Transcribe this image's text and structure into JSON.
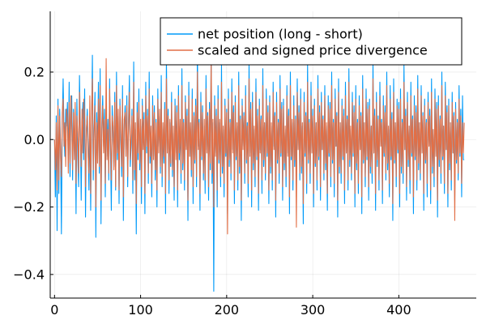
{
  "chart_data": {
    "type": "line",
    "title": "",
    "xlabel": "",
    "ylabel": "",
    "xlim": [
      -5,
      490
    ],
    "ylim": [
      -0.47,
      0.38
    ],
    "xticks": [
      0,
      100,
      200,
      300,
      400
    ],
    "xtick_labels": [
      "0",
      "100",
      "200",
      "300",
      "400"
    ],
    "yticks": [
      -0.4,
      -0.2,
      0.0,
      0.2
    ],
    "ytick_labels": [
      "−0.4",
      "−0.2",
      "0.0",
      "0.2"
    ],
    "grid": true,
    "legend_position": "top-right",
    "series": [
      {
        "name": "net position (long - short)",
        "color": "#009AF9",
        "values": [
          0.0,
          -0.17,
          0.07,
          -0.27,
          0.12,
          -0.16,
          0.09,
          -0.02,
          -0.28,
          0.05,
          0.18,
          0.02,
          -0.05,
          0.09,
          0.04,
          0.11,
          -0.08,
          0.17,
          -0.11,
          0.08,
          0.13,
          -0.12,
          0.09,
          -0.03,
          0.06,
          -0.22,
          0.12,
          -0.05,
          -0.14,
          0.19,
          0.03,
          -0.18,
          0.05,
          0.11,
          -0.06,
          0.15,
          -0.23,
          0.02,
          0.09,
          -0.01,
          -0.15,
          0.07,
          -0.21,
          0.04,
          0.25,
          -0.12,
          0.03,
          0.14,
          -0.29,
          0.08,
          -0.04,
          0.17,
          -0.1,
          0.21,
          -0.25,
          0.05,
          0.13,
          -0.02,
          0.09,
          -0.17,
          0.11,
          -0.05,
          0.06,
          -0.12,
          0.18,
          -0.03,
          -0.21,
          0.1,
          0.02,
          -0.08,
          0.14,
          -0.15,
          0.2,
          -0.06,
          0.07,
          -0.19,
          0.12,
          0.0,
          -0.11,
          0.16,
          -0.24,
          0.04,
          0.1,
          -0.03,
          0.13,
          -0.14,
          0.06,
          0.19,
          -0.08,
          -0.02,
          0.09,
          -0.16,
          0.23,
          -0.12,
          0.03,
          -0.28,
          0.11,
          -0.06,
          0.15,
          -0.09,
          0.04,
          -0.19,
          0.12,
          -0.01,
          0.08,
          -0.22,
          0.17,
          -0.04,
          0.09,
          -0.13,
          0.2,
          -0.07,
          0.02,
          -0.17,
          0.13,
          -0.05,
          0.1,
          -0.12,
          0.06,
          -0.2,
          0.15,
          -0.02,
          0.07,
          -0.1,
          0.19,
          -0.14,
          0.03,
          -0.07,
          0.11,
          -0.22,
          0.24,
          -0.03,
          0.09,
          -0.16,
          0.05,
          -0.08,
          0.14,
          -0.11,
          0.02,
          -0.18,
          0.12,
          -0.04,
          0.1,
          -0.2,
          0.16,
          -0.06,
          0.04,
          -0.13,
          0.21,
          -0.09,
          0.06,
          -0.15,
          0.13,
          -0.02,
          0.09,
          -0.24,
          0.17,
          -0.05,
          0.03,
          -0.11,
          0.15,
          -0.19,
          0.08,
          -0.07,
          0.12,
          -0.14,
          0.27,
          -0.02,
          0.06,
          -0.21,
          0.14,
          -0.06,
          0.1,
          -0.12,
          0.04,
          -0.16,
          0.19,
          -0.03,
          0.08,
          -0.18,
          0.11,
          -0.09,
          0.28,
          -0.13,
          0.05,
          -0.45,
          0.13,
          -0.04,
          0.09,
          -0.2,
          0.16,
          -0.07,
          0.05,
          -0.14,
          0.22,
          -0.1,
          0.03,
          -0.17,
          0.12,
          -0.05,
          0.09,
          -0.22,
          0.15,
          -0.08,
          0.06,
          -0.12,
          0.18,
          -0.03,
          0.1,
          -0.19,
          0.13,
          -0.06,
          0.04,
          -0.15,
          0.2,
          -0.1,
          0.07,
          -0.24,
          0.12,
          -0.02,
          0.08,
          -0.13,
          0.16,
          -0.07,
          0.05,
          -0.17,
          0.23,
          -0.04,
          0.11,
          -0.2,
          0.14,
          -0.09,
          0.03,
          -0.14,
          0.18,
          -0.06,
          0.09,
          -0.21,
          0.12,
          -0.03,
          0.07,
          -0.16,
          0.21,
          -0.08,
          0.05,
          -0.12,
          0.15,
          -0.05,
          0.1,
          -0.19,
          0.13,
          -0.1,
          0.04,
          -0.15,
          0.17,
          -0.02,
          0.08,
          -0.23,
          0.14,
          -0.07,
          0.06,
          -0.13,
          0.19,
          -0.05,
          0.11,
          -0.18,
          0.12,
          -0.09,
          0.03,
          -0.14,
          0.16,
          -0.04,
          0.09,
          -0.22,
          0.2,
          -0.06,
          0.05,
          -0.15,
          0.13,
          -0.08,
          0.07,
          -0.17,
          0.18,
          -0.03,
          0.1,
          -0.12,
          0.15,
          -0.1,
          0.04,
          -0.25,
          0.14,
          -0.05,
          0.08,
          -0.16,
          0.22,
          -0.07,
          0.06,
          -0.13,
          0.17,
          -0.04,
          0.09,
          -0.2,
          0.12,
          -0.08,
          0.05,
          -0.15,
          0.19,
          -0.06,
          0.1,
          -0.18,
          0.14,
          -0.03,
          0.07,
          -0.12,
          0.16,
          -0.09,
          0.04,
          -0.21,
          0.13,
          -0.05,
          0.11,
          -0.14,
          0.2,
          -0.07,
          0.06,
          -0.17,
          0.15,
          -0.02,
          0.08,
          -0.23,
          0.18,
          -0.1,
          0.05,
          -0.13,
          0.12,
          -0.06,
          0.09,
          -0.19,
          0.17,
          -0.04,
          0.07,
          -0.15,
          0.21,
          -0.08,
          0.03,
          -0.12,
          0.14,
          -0.05,
          0.1,
          -0.2,
          0.16,
          -0.09,
          0.06,
          -0.16,
          0.13,
          -0.03,
          0.08,
          -0.22,
          0.19,
          -0.07,
          0.05,
          -0.14,
          0.15,
          -0.06,
          0.11,
          -0.18,
          0.12,
          -0.1,
          0.04,
          -0.13,
          0.23,
          -0.04,
          0.09,
          -0.21,
          0.14,
          -0.08,
          0.07,
          -0.15,
          0.17,
          -0.02,
          0.06,
          -0.19,
          0.13,
          -0.05,
          0.1,
          -0.12,
          0.2,
          -0.09,
          0.03,
          -0.17,
          0.16,
          -0.06,
          0.08,
          -0.24,
          0.18,
          -0.07,
          0.05,
          -0.14,
          0.12,
          -0.04,
          0.11,
          -0.2,
          0.15,
          -0.1,
          0.06,
          -0.13,
          0.22,
          -0.03,
          0.09,
          -0.18,
          0.14,
          -0.08,
          0.04,
          -0.16,
          0.17,
          -0.05,
          0.07,
          -0.22,
          0.13,
          -0.06,
          0.1,
          -0.15,
          0.19,
          -0.09,
          0.05,
          -0.12,
          0.16,
          -0.04,
          0.08,
          -0.21,
          0.12,
          -0.07,
          0.06,
          -0.17,
          0.14,
          -0.02,
          0.09,
          -0.19,
          0.18,
          -0.1,
          0.03,
          -0.14,
          0.15,
          -0.05,
          0.11,
          -0.23,
          0.13,
          -0.08,
          0.07,
          -0.13,
          0.2,
          -0.06,
          0.04,
          -0.16,
          0.17,
          -0.03,
          0.1,
          -0.2,
          0.12,
          -0.09,
          0.05,
          -0.15,
          0.14,
          -0.04,
          0.08,
          -0.18,
          0.11,
          -0.07,
          0.06,
          -0.12,
          0.16,
          -0.05,
          0.09,
          -0.17,
          0.13,
          -0.06,
          -0.06
        ],
        "source": "approximate read of plotted line"
      },
      {
        "name": "scaled and signed price divergence",
        "color": "#E26F46",
        "values": [
          0.0,
          -0.09,
          0.05,
          -0.15,
          0.1,
          -0.12,
          0.07,
          -0.05,
          -0.11,
          0.08,
          0.12,
          -0.02,
          0.05,
          -0.08,
          0.09,
          0.06,
          -0.1,
          0.11,
          -0.07,
          0.13,
          0.04,
          -0.09,
          0.08,
          -0.06,
          0.11,
          -0.13,
          0.07,
          0.02,
          -0.1,
          0.14,
          0.01,
          -0.08,
          0.09,
          -0.04,
          0.12,
          0.06,
          -0.14,
          0.03,
          0.07,
          -0.05,
          -0.1,
          0.13,
          -0.16,
          0.08,
          0.18,
          -0.09,
          0.02,
          0.1,
          -0.2,
          0.05,
          -0.07,
          0.12,
          -0.08,
          0.16,
          -0.18,
          0.03,
          0.1,
          -0.04,
          0.06,
          -0.13,
          0.24,
          -0.06,
          0.03,
          -0.1,
          0.15,
          0.01,
          -0.12,
          0.07,
          0.04,
          -0.09,
          0.11,
          -0.14,
          0.16,
          -0.04,
          0.09,
          -0.15,
          0.1,
          0.02,
          -0.08,
          0.12,
          -0.17,
          0.06,
          0.08,
          -0.05,
          0.1,
          -0.11,
          0.04,
          0.14,
          -0.06,
          0.01,
          0.07,
          -0.12,
          0.17,
          -0.09,
          0.05,
          -0.19,
          0.08,
          -0.04,
          0.11,
          -0.07,
          0.06,
          -0.14,
          0.1,
          -0.03,
          0.06,
          -0.16,
          0.13,
          -0.02,
          0.07,
          -0.1,
          0.15,
          -0.05,
          0.04,
          -0.13,
          0.1,
          -0.06,
          0.08,
          -0.09,
          0.05,
          -0.15,
          0.12,
          -0.04,
          0.09,
          -0.08,
          0.14,
          -0.11,
          0.05,
          -0.05,
          0.09,
          -0.16,
          0.18,
          -0.04,
          0.07,
          -0.12,
          0.06,
          -0.07,
          0.11,
          -0.09,
          0.04,
          -0.14,
          0.1,
          -0.06,
          0.08,
          -0.15,
          0.13,
          -0.04,
          0.06,
          -0.1,
          0.16,
          -0.07,
          0.05,
          -0.12,
          0.11,
          -0.03,
          0.07,
          -0.18,
          0.13,
          -0.05,
          0.05,
          -0.09,
          0.12,
          -0.14,
          0.07,
          -0.06,
          0.1,
          -0.11,
          0.2,
          -0.03,
          0.05,
          -0.16,
          0.11,
          -0.05,
          0.08,
          -0.1,
          0.06,
          -0.12,
          0.15,
          -0.04,
          0.07,
          -0.14,
          0.09,
          -0.07,
          0.24,
          -0.1,
          0.06,
          -0.2,
          0.1,
          -0.05,
          0.07,
          -0.15,
          0.12,
          -0.06,
          0.06,
          -0.11,
          0.17,
          -0.08,
          0.04,
          -0.13,
          0.1,
          -0.04,
          0.08,
          -0.28,
          0.12,
          -0.06,
          0.05,
          -0.1,
          0.14,
          -0.04,
          0.08,
          -0.15,
          0.11,
          -0.05,
          0.05,
          -0.12,
          0.16,
          -0.08,
          0.06,
          -0.18,
          0.1,
          -0.03,
          0.07,
          -0.1,
          0.13,
          -0.06,
          0.04,
          -0.13,
          0.18,
          -0.05,
          0.09,
          -0.15,
          0.11,
          -0.07,
          0.04,
          -0.11,
          0.14,
          -0.05,
          0.07,
          -0.16,
          0.1,
          -0.04,
          0.06,
          -0.12,
          0.16,
          -0.06,
          0.05,
          -0.1,
          0.12,
          -0.04,
          0.08,
          -0.15,
          0.11,
          -0.08,
          0.05,
          -0.12,
          0.14,
          -0.03,
          0.07,
          -0.18,
          0.11,
          -0.06,
          0.05,
          -0.1,
          0.15,
          -0.04,
          0.09,
          -0.14,
          0.1,
          -0.07,
          0.04,
          -0.11,
          0.13,
          -0.05,
          0.07,
          -0.17,
          0.16,
          -0.05,
          0.06,
          -0.12,
          0.1,
          -0.06,
          0.06,
          -0.26,
          0.14,
          -0.03,
          0.08,
          -0.1,
          0.12,
          -0.08,
          0.05,
          -0.19,
          0.11,
          -0.04,
          0.07,
          -0.13,
          0.17,
          -0.06,
          0.05,
          -0.1,
          0.13,
          -0.04,
          0.07,
          -0.16,
          0.1,
          -0.07,
          0.05,
          -0.12,
          0.15,
          -0.05,
          0.08,
          -0.14,
          0.11,
          -0.03,
          0.06,
          -0.1,
          0.13,
          -0.07,
          0.05,
          -0.16,
          0.1,
          -0.04,
          0.09,
          -0.11,
          0.16,
          -0.06,
          0.05,
          -0.13,
          0.12,
          -0.02,
          0.07,
          -0.18,
          0.14,
          -0.08,
          0.05,
          -0.1,
          0.1,
          -0.05,
          0.07,
          -0.15,
          0.13,
          -0.04,
          0.06,
          -0.12,
          0.17,
          -0.06,
          0.04,
          -0.1,
          0.11,
          -0.04,
          0.08,
          -0.16,
          0.12,
          -0.07,
          0.05,
          -0.13,
          0.1,
          -0.03,
          0.07,
          -0.17,
          0.15,
          -0.06,
          0.05,
          -0.11,
          0.12,
          -0.05,
          0.09,
          -0.14,
          0.1,
          -0.08,
          0.04,
          -0.1,
          0.18,
          -0.04,
          0.07,
          -0.16,
          0.11,
          -0.06,
          0.06,
          -0.12,
          0.13,
          -0.02,
          0.05,
          -0.15,
          0.1,
          -0.04,
          0.08,
          -0.1,
          0.16,
          -0.07,
          0.04,
          -0.13,
          0.12,
          -0.05,
          0.06,
          -0.19,
          0.14,
          -0.06,
          0.05,
          -0.11,
          0.1,
          -0.03,
          0.09,
          -0.16,
          0.12,
          -0.08,
          0.05,
          -0.1,
          0.17,
          -0.03,
          0.07,
          -0.14,
          0.11,
          -0.06,
          0.04,
          -0.12,
          0.13,
          -0.04,
          0.06,
          -0.17,
          0.1,
          -0.05,
          0.08,
          -0.12,
          0.15,
          -0.07,
          0.05,
          -0.1,
          0.13,
          -0.04,
          0.07,
          -0.16,
          0.1,
          -0.06,
          0.05,
          -0.13,
          0.11,
          -0.02,
          0.07,
          -0.15,
          0.14,
          -0.08,
          0.03,
          -0.11,
          0.12,
          -0.05,
          0.09,
          -0.18,
          0.1,
          -0.06,
          0.06,
          -0.1,
          0.16,
          -0.05,
          0.04,
          -0.13,
          0.13,
          -0.03,
          0.08,
          -0.16,
          0.1,
          -0.07,
          0.05,
          -0.12,
          0.11,
          -0.04,
          0.07,
          -0.24,
          0.09,
          -0.06,
          0.05,
          -0.1,
          0.12,
          -0.04,
          0.07,
          -0.13,
          0.05,
          -0.04,
          0.05
        ],
        "source": "approximate read of plotted line"
      }
    ]
  }
}
